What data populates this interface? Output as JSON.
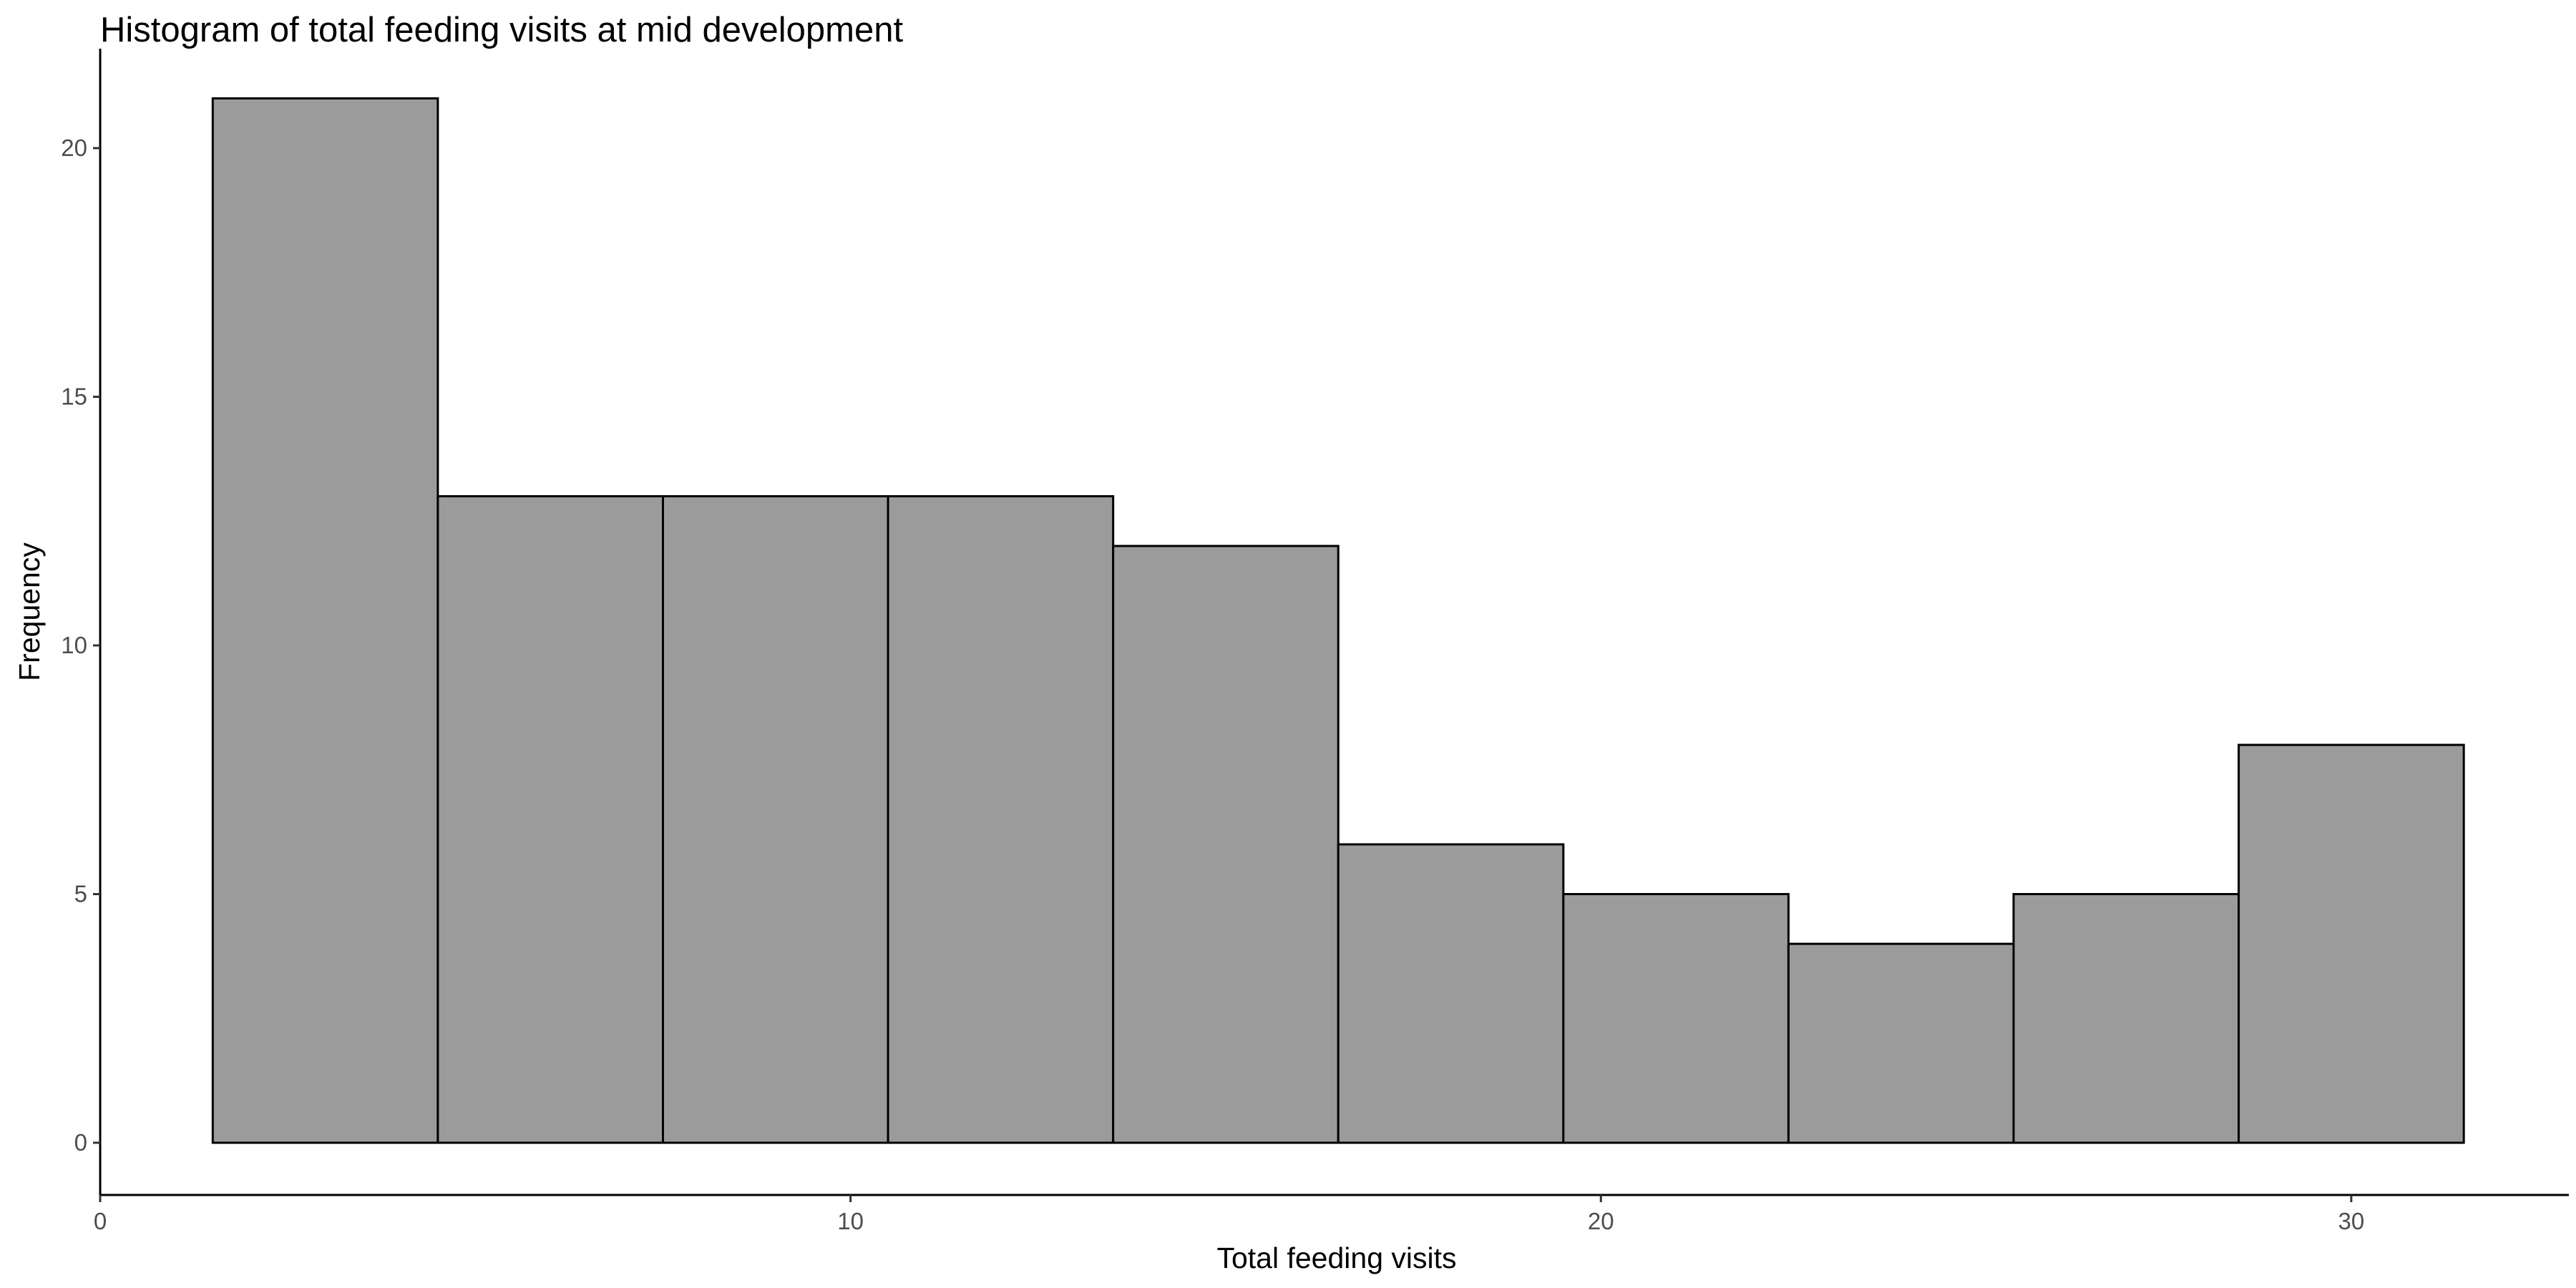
{
  "chart_data": {
    "type": "bar",
    "title": "Histogram of total feeding visits at mid development",
    "xlabel": "Total feeding visits",
    "ylabel": "Frequency",
    "bin_width": 3,
    "bins": [
      {
        "start": 1.5,
        "end": 4.5,
        "count": 21
      },
      {
        "start": 4.5,
        "end": 7.5,
        "count": 13
      },
      {
        "start": 7.5,
        "end": 10.5,
        "count": 13
      },
      {
        "start": 10.5,
        "end": 13.5,
        "count": 13
      },
      {
        "start": 13.5,
        "end": 16.5,
        "count": 12
      },
      {
        "start": 16.5,
        "end": 19.5,
        "count": 6
      },
      {
        "start": 19.5,
        "end": 22.5,
        "count": 5
      },
      {
        "start": 22.5,
        "end": 25.5,
        "count": 4
      },
      {
        "start": 25.5,
        "end": 28.5,
        "count": 5
      },
      {
        "start": 28.5,
        "end": 31.5,
        "count": 8
      }
    ],
    "xlim": [
      0,
      32.9
    ],
    "ylim": [
      -1.05,
      22
    ],
    "x_ticks": [
      0,
      10,
      20,
      30
    ],
    "y_ticks": [
      0,
      5,
      10,
      15,
      20
    ],
    "x_tick_labels": [
      "0",
      "10",
      "20",
      "30"
    ],
    "y_tick_labels": [
      "0",
      "5",
      "10",
      "15",
      "20"
    ],
    "bar_fill": "#9b9b9b",
    "bar_stroke": "#000000",
    "grid": false,
    "legend": "none"
  }
}
